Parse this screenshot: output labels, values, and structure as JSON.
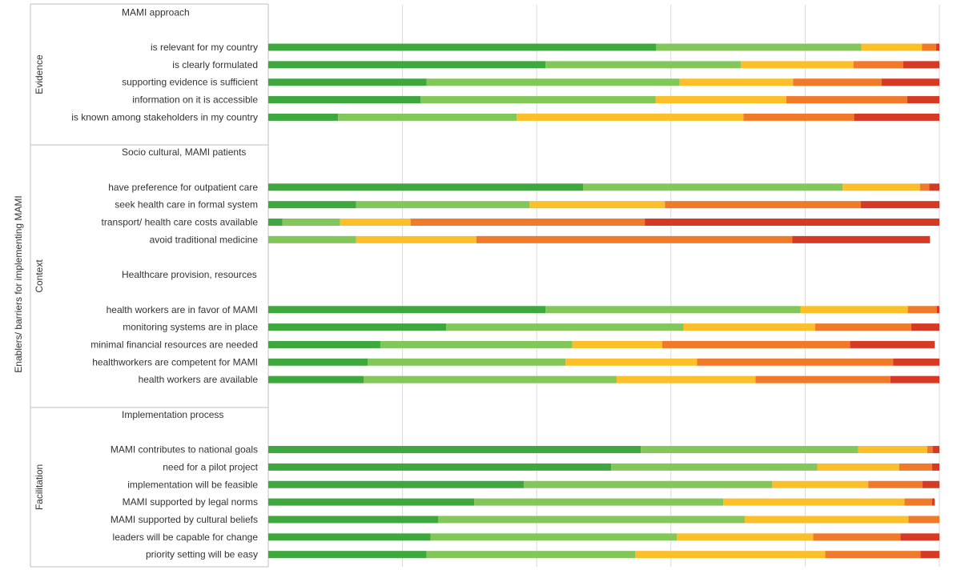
{
  "chart_data": {
    "type": "bar",
    "stacked": "100%",
    "orientation": "horizontal",
    "xlim": [
      0,
      100
    ],
    "grid": true,
    "ylabel_outer": "Enablers/ barriers for implementing  MAMI",
    "colors": [
      "#3ea83e",
      "#83c75b",
      "#fbbf2a",
      "#f07a2a",
      "#d63a25"
    ],
    "sections": [
      {
        "label": "Evidence",
        "groups": [
          {
            "title": "MAMI approach",
            "items": [
              {
                "label": "is relevant for my country",
                "values": [
                  57.8,
                  30.6,
                  9.0,
                  2.1,
                  0.5
                ]
              },
              {
                "label": "is clearly formulated",
                "values": [
                  41.3,
                  29.1,
                  16.8,
                  7.4,
                  5.4
                ]
              },
              {
                "label": "supporting evidence is sufficient",
                "values": [
                  23.6,
                  37.7,
                  16.9,
                  13.2,
                  8.6
                ]
              },
              {
                "label": "information on it is accessible",
                "values": [
                  22.7,
                  35.0,
                  19.5,
                  18.0,
                  4.8
                ]
              },
              {
                "label": "is known among stakeholders in my country",
                "values": [
                  10.4,
                  26.6,
                  33.8,
                  16.5,
                  12.7
                ]
              }
            ]
          }
        ]
      },
      {
        "label": "Context",
        "groups": [
          {
            "title": "Socio cultural, MAMI patients",
            "items": [
              {
                "label": "have preference for outpatient care",
                "values": [
                  46.9,
                  38.7,
                  11.5,
                  1.4,
                  1.5
                ]
              },
              {
                "label": "seek health care in formal system",
                "values": [
                  13.1,
                  25.8,
                  20.2,
                  29.2,
                  11.7
                ]
              },
              {
                "label": "transport/ health care costs available",
                "values": [
                  2.1,
                  8.6,
                  10.5,
                  34.9,
                  43.9
                ]
              },
              {
                "label": "avoid traditional medicine",
                "values": [
                  0.0,
                  13.1,
                  17.9,
                  47.1,
                  20.5
                ]
              }
            ]
          },
          {
            "title": "Healthcare provision, resources",
            "items": [
              {
                "label": "health workers are in favor of MAMI",
                "values": [
                  41.3,
                  38.0,
                  16.0,
                  4.3,
                  0.4
                ]
              },
              {
                "label": "monitoring systems are in place",
                "values": [
                  26.5,
                  35.4,
                  19.6,
                  14.3,
                  4.2
                ]
              },
              {
                "label": "minimal financial resources are needed",
                "values": [
                  16.7,
                  28.6,
                  13.4,
                  28.0,
                  12.6
                ]
              },
              {
                "label": "healthworkers are competent for MAMI",
                "values": [
                  14.8,
                  29.5,
                  19.6,
                  29.2,
                  6.9
                ]
              },
              {
                "label": "health workers are available",
                "values": [
                  14.2,
                  37.7,
                  20.7,
                  20.1,
                  7.3
                ]
              }
            ]
          }
        ]
      },
      {
        "label": "Facilitation",
        "groups": [
          {
            "title": "Implementation process",
            "items": [
              {
                "label": "MAMI contributes to national goals",
                "values": [
                  55.5,
                  32.4,
                  10.3,
                  0.8,
                  1.0
                ]
              },
              {
                "label": "need for a pilot project",
                "values": [
                  51.1,
                  30.7,
                  12.2,
                  4.9,
                  1.1
                ]
              },
              {
                "label": "implementation will be feasible",
                "values": [
                  38.1,
                  37.0,
                  14.3,
                  8.1,
                  2.5
                ]
              },
              {
                "label": "MAMI supported by legal norms",
                "values": [
                  30.7,
                  37.1,
                  27.0,
                  4.1,
                  0.4
                ]
              },
              {
                "label": "MAMI supported by cultural beliefs",
                "values": [
                  25.3,
                  45.7,
                  24.4,
                  4.6,
                  0.0
                ]
              },
              {
                "label": "leaders will be capable for change",
                "values": [
                  24.2,
                  36.7,
                  20.3,
                  13.0,
                  5.8
                ]
              },
              {
                "label": "priority setting will be easy",
                "values": [
                  23.6,
                  31.1,
                  28.3,
                  14.2,
                  2.8
                ]
              }
            ]
          }
        ]
      }
    ]
  }
}
